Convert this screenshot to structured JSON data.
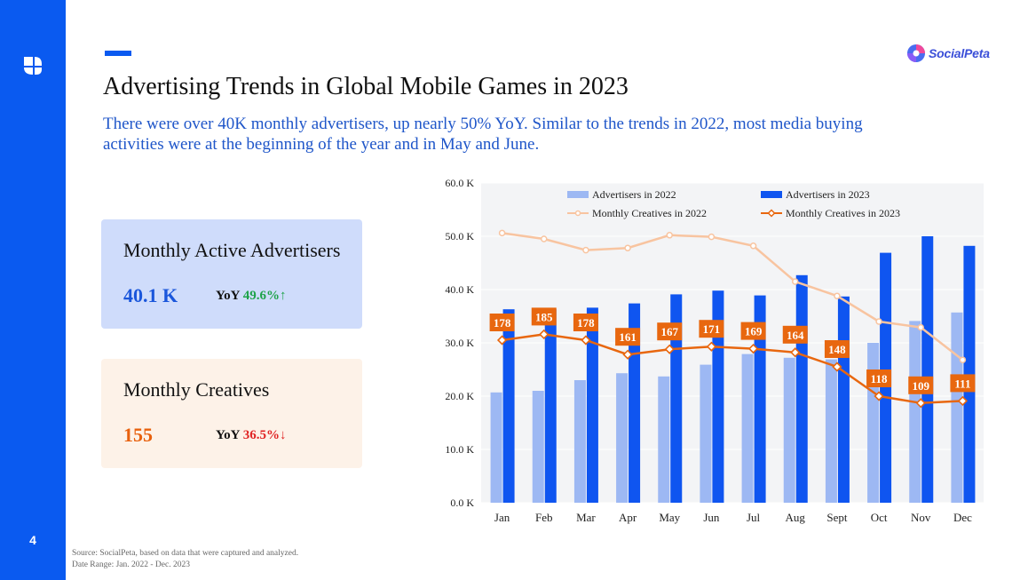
{
  "page": {
    "number": "4",
    "title": "Advertising Trends in Global Mobile Games in 2023",
    "subtitle": "There were over 40K monthly advertisers, up nearly 50% YoY. Similar to the trends in 2022, most media buying activities were at the beginning of the year and in May and June.",
    "brand": "SocialPeta",
    "source_line1": "Source: SocialPeta, based on data that were captured and analyzed.",
    "source_line2": "Date Range: Jan. 2022 - Dec. 2023"
  },
  "cards": {
    "advertisers": {
      "title": "Monthly Active Advertisers",
      "value": "40.1 K",
      "yoy_label": "YoY",
      "yoy_value": "49.6%↑"
    },
    "creatives": {
      "title": "Monthly Creatives",
      "value": "155",
      "yoy_label": "YoY",
      "yoy_value": "36.5%↓"
    }
  },
  "colors": {
    "brand_blue": "#0a5af0",
    "adv_2022": "#9db8f3",
    "adv_2023": "#0f55f0",
    "cre_2022": "#f8c4a0",
    "cre_2023": "#e8670f"
  },
  "chart_data": {
    "type": "bar",
    "categories": [
      "Jan",
      "Feb",
      "Mar",
      "Apr",
      "May",
      "Jun",
      "Jul",
      "Aug",
      "Sept",
      "Oct",
      "Nov",
      "Dec"
    ],
    "y_ticks": [
      "0.0 K",
      "10.0 K",
      "20.0 K",
      "30.0 K",
      "40.0 K",
      "50.0 K",
      "60.0 K"
    ],
    "ylim": [
      0,
      60
    ],
    "yunit": "K",
    "series": [
      {
        "name": "Advertisers in 2022",
        "kind": "bar",
        "values": [
          20.7,
          21.0,
          23.0,
          24.3,
          23.7,
          25.9,
          27.9,
          27.2,
          26.9,
          30.0,
          34.1,
          35.7
        ]
      },
      {
        "name": "Advertisers in 2023",
        "kind": "bar",
        "values": [
          36.3,
          36.3,
          36.6,
          37.4,
          39.1,
          39.8,
          38.9,
          42.7,
          38.7,
          46.9,
          50.0,
          48.2
        ]
      },
      {
        "name": "Monthly Creatives in 2022",
        "kind": "line",
        "values": [
          50.6,
          49.5,
          47.4,
          47.8,
          50.2,
          49.9,
          48.2,
          41.5,
          38.8,
          34.0,
          32.9,
          26.8
        ]
      },
      {
        "name": "Monthly Creatives in 2023",
        "kind": "line",
        "values": [
          30.5,
          31.6,
          30.5,
          27.8,
          28.8,
          29.3,
          28.9,
          28.2,
          25.5,
          20.0,
          18.7,
          19.1
        ],
        "labels": [
          "178",
          "185",
          "178",
          "161",
          "167",
          "171",
          "169",
          "164",
          "148",
          "118",
          "109",
          "111"
        ]
      }
    ]
  }
}
